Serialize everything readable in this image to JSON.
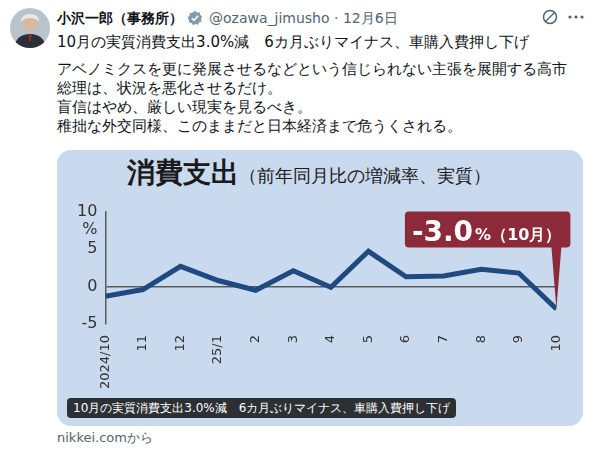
{
  "header": {
    "name": "小沢一郎（事務所）",
    "meta": "@ozawa_jimusho · 12月6日"
  },
  "post": {
    "headline": "10月の実質消費支出3.0%減　6カ月ぶりマイナス、車購入費押し下げ",
    "paragraphs": [
      "アベノミクスを更に発展させるなどという信じられない主張を展開する高市総理は、状況を悪化させるだけ。",
      "盲信はやめ、厳しい現実を見るべき。",
      "稚拙な外交同様、このままだと日本経済まで危うくされる。"
    ]
  },
  "chart_data": {
    "type": "line",
    "title": "消費支出",
    "subtitle": "（前年同月比の増減率、実質）",
    "y_label": "%",
    "categories": [
      "2024/10",
      "11",
      "12",
      "25/1",
      "2",
      "3",
      "4",
      "5",
      "6",
      "7",
      "8",
      "9",
      "10"
    ],
    "values": [
      -1.3,
      -0.4,
      2.7,
      0.8,
      -0.5,
      2.1,
      -0.1,
      4.7,
      1.3,
      1.4,
      2.3,
      1.8,
      -3.0
    ],
    "color": "#1f4a80",
    "ylim": [
      -5,
      10
    ],
    "yticks": [
      -5,
      0,
      5,
      10
    ],
    "grid": false,
    "annotation": {
      "parts": [
        "-3.0",
        "%（10月）"
      ],
      "color": "#8c2a3a"
    }
  },
  "caption": "10月の実質消費支出3.0%減　6カ月ぶりマイナス、車購入費押し下げ",
  "source": "nikkei.comから"
}
